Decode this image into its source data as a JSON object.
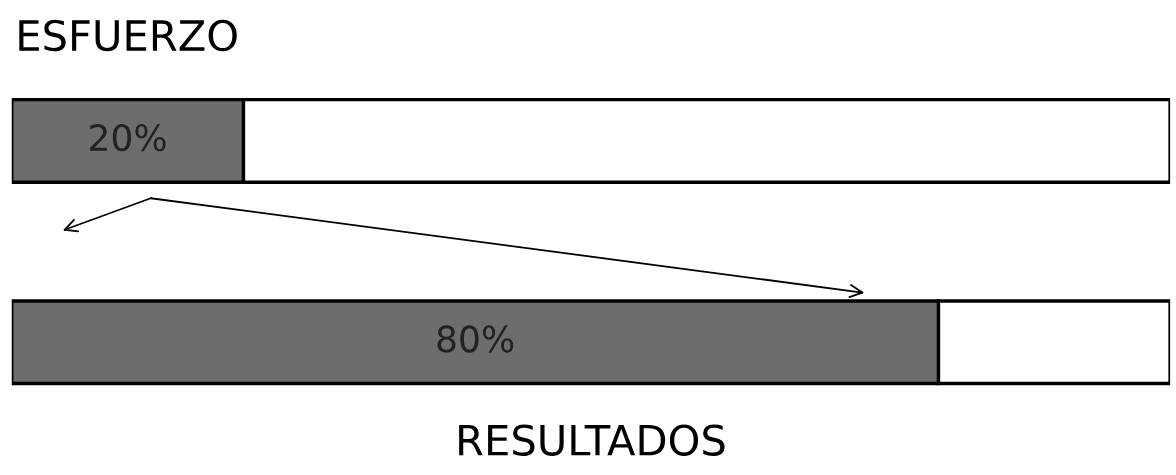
{
  "chart_data": {
    "type": "bar",
    "orientation": "horizontal",
    "categories": [
      null,
      null
    ],
    "annotations": [
      "ESFUERZO",
      "RESULTADOS"
    ],
    "values": [
      20,
      80
    ],
    "value_labels": [
      "20%",
      "80%"
    ],
    "color": "#6d6d6d",
    "xlim": [
      0,
      100
    ]
  }
}
